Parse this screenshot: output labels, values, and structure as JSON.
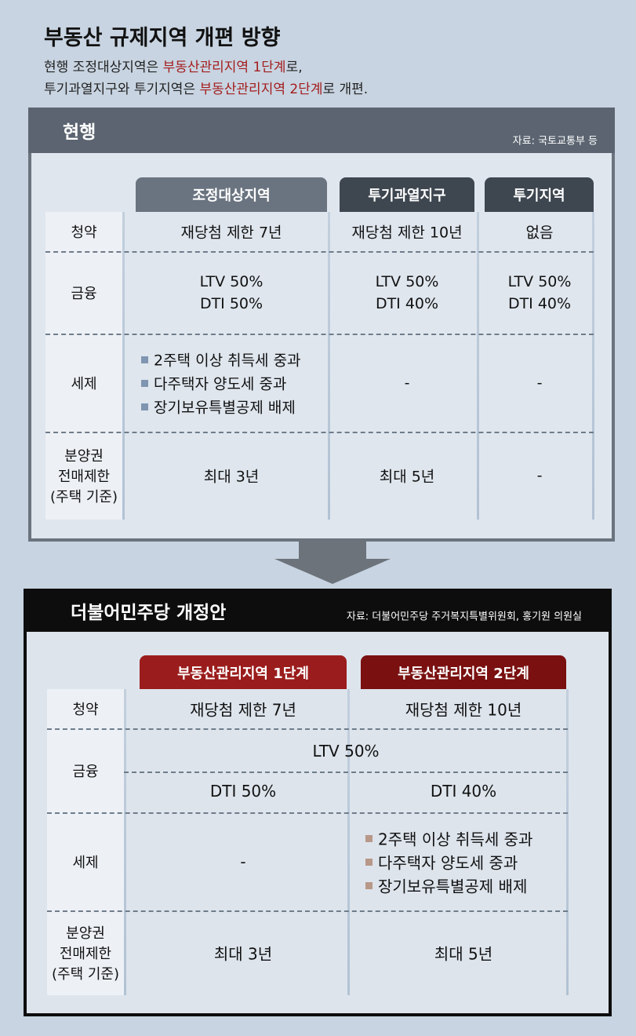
{
  "header": {
    "title": "부동산 규제지역 개편 방향",
    "subtitle": [
      [
        "현행 조정대상지역은 ",
        "부동산관리지역 1단계",
        "로,"
      ],
      [
        "투기과열지구와 투기지역은 ",
        "부동산관리지역 2단계",
        "로 개편."
      ]
    ]
  },
  "current": {
    "title": "현행",
    "source": "자료: 국토교통부 등",
    "columns": [
      "조정대상지역",
      "투기과열지구",
      "투기지역"
    ],
    "rows": [
      {
        "label": [
          "청약"
        ],
        "cells": [
          [
            "재당첨 제한 7년"
          ],
          [
            "재당첨 제한 10년"
          ],
          [
            "없음"
          ]
        ]
      },
      {
        "label": [
          "금융"
        ],
        "cells": [
          [
            "LTV 50%",
            "DTI 50%"
          ],
          [
            "LTV 50%",
            "DTI 40%"
          ],
          [
            "LTV 50%",
            "DTI 40%"
          ]
        ]
      },
      {
        "label": [
          "세제"
        ],
        "cells": [
          [
            "2주택 이상 취득세 중과",
            "다주택자 양도세 중과",
            "장기보유특별공제 배제"
          ],
          [
            "-"
          ],
          [
            "-"
          ]
        ]
      },
      {
        "label": [
          "분양권",
          "전매제한",
          "(주택 기준)"
        ],
        "cells": [
          [
            "최대 3년"
          ],
          [
            "최대 5년"
          ],
          [
            "-"
          ]
        ]
      }
    ]
  },
  "proposal": {
    "title": "더불어민주당 개정안",
    "source": "자료: 더불어민주당 주거복지특별위원회, 홍기원 의원실",
    "columns": [
      "부동산관리지역 1단계",
      "부동산관리지역 2단계"
    ],
    "rows": [
      {
        "label": [
          "청약"
        ],
        "cells": [
          [
            "재당첨 제한 7년"
          ],
          [
            "재당첨 제한 10년"
          ]
        ]
      },
      {
        "label": [
          "금융"
        ],
        "merged": "LTV 50%",
        "cells": [
          [
            "DTI 50%"
          ],
          [
            "DTI 40%"
          ]
        ]
      },
      {
        "label": [
          "세제"
        ],
        "cells": [
          [
            "-"
          ],
          [
            "2주택 이상 취득세 중과",
            "다주택자 양도세 중과",
            "장기보유특별공제 배제"
          ]
        ]
      },
      {
        "label": [
          "분양권",
          "전매제한",
          "(주택 기준)"
        ],
        "cells": [
          [
            "최대 3년"
          ],
          [
            "최대 5년"
          ]
        ]
      }
    ]
  }
}
